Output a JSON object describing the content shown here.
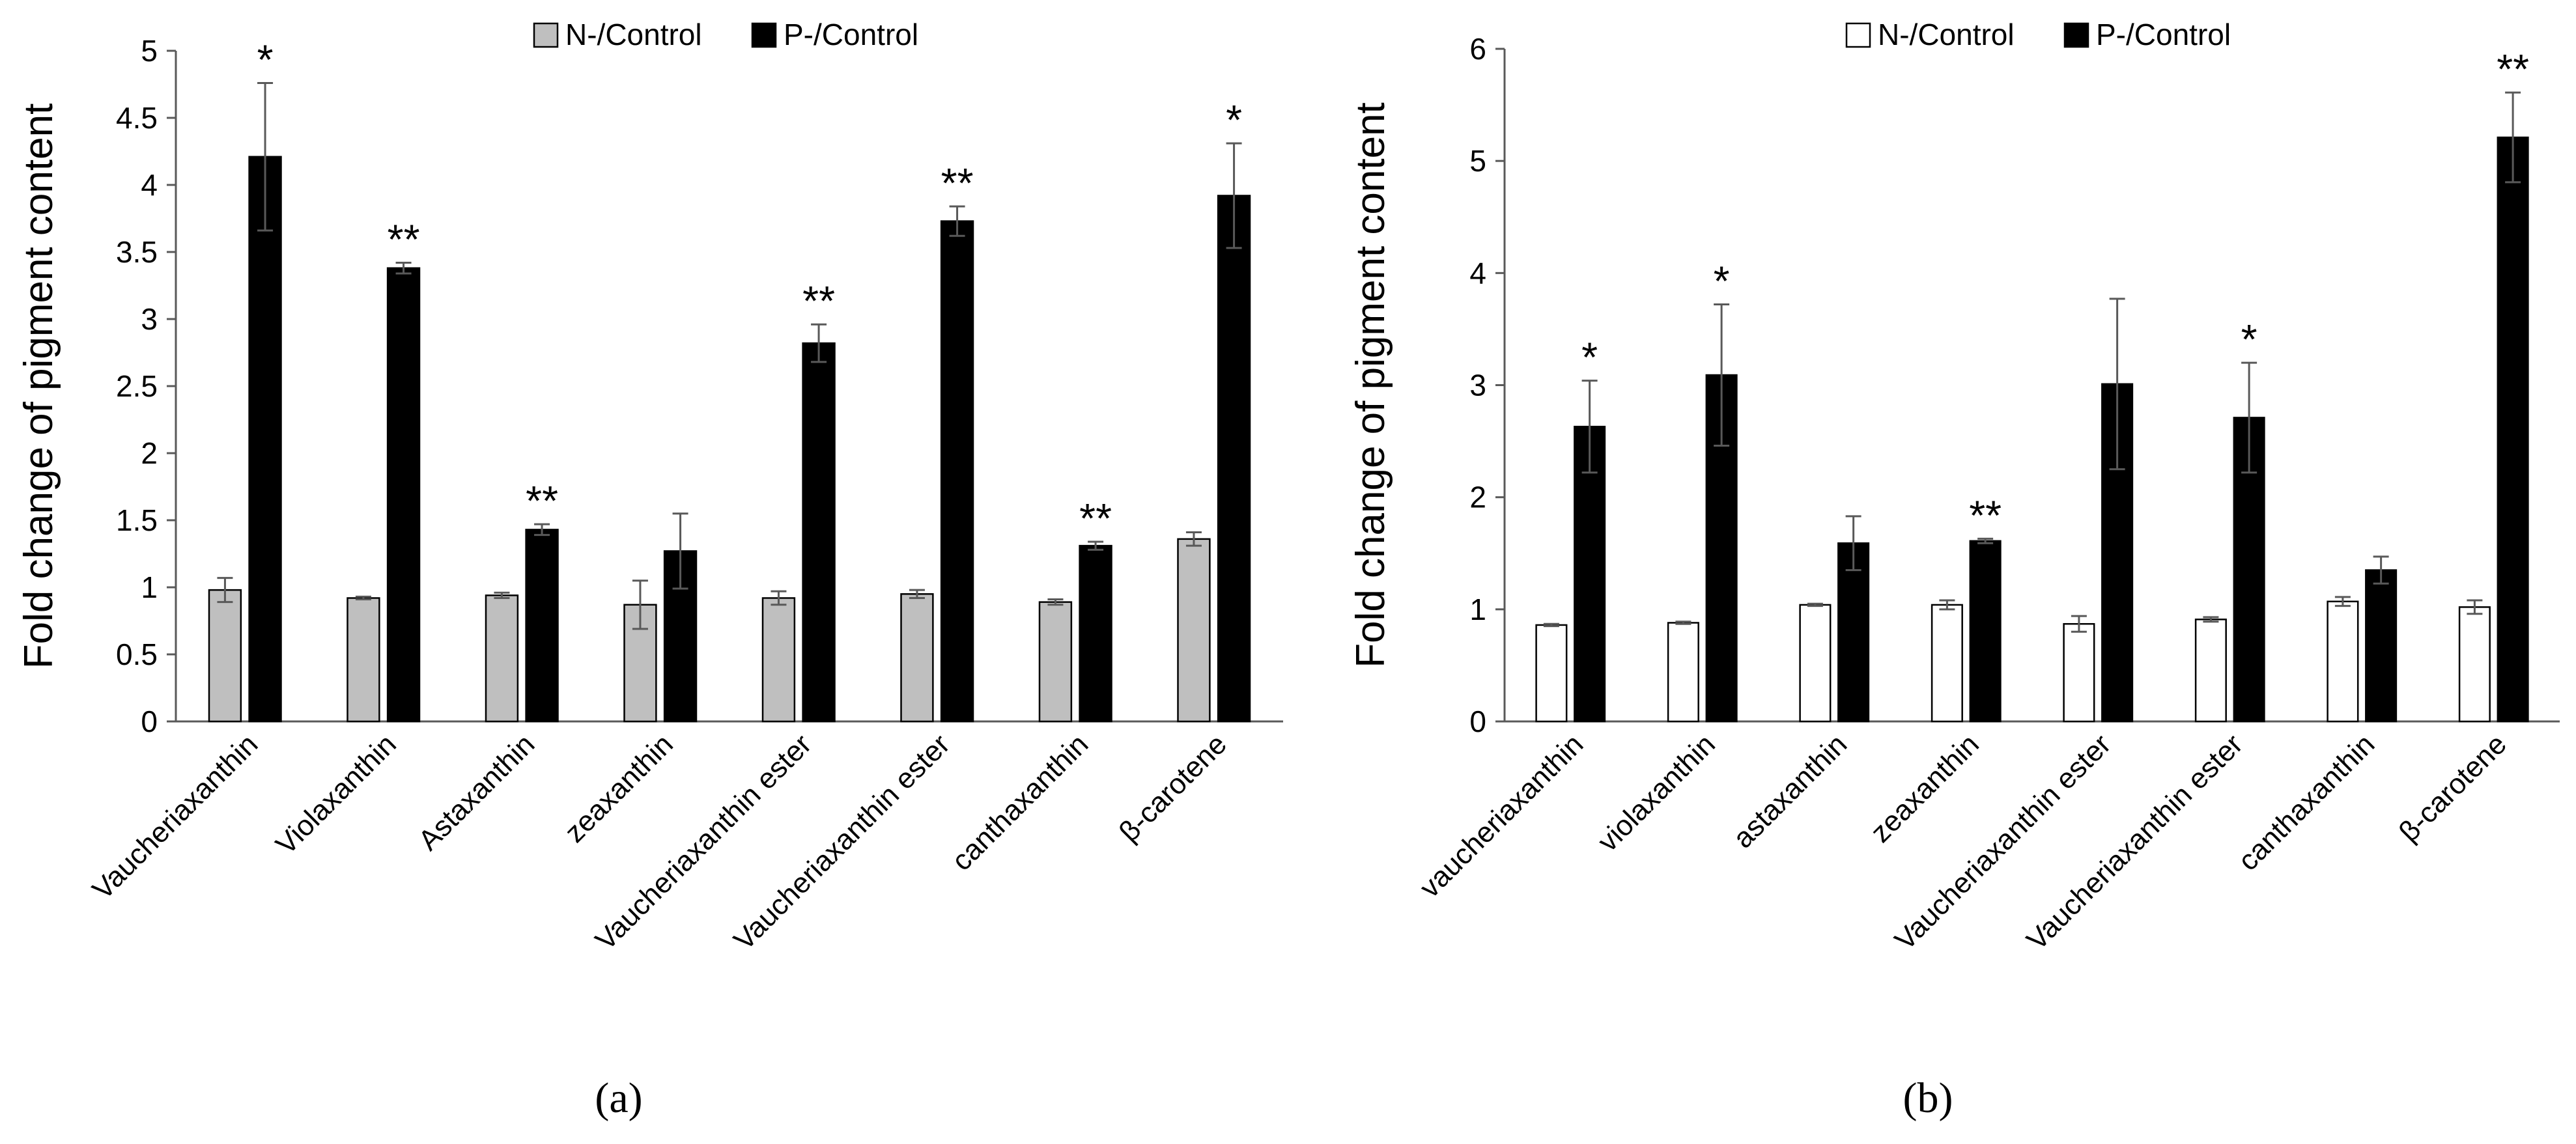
{
  "chart_data": [
    {
      "panel_label": "(a)",
      "type": "bar",
      "ylabel": "Fold change of pigment content",
      "xlabel": "",
      "ylim": [
        0,
        5
      ],
      "yticks": [
        "0",
        "0.5",
        "1",
        "1.5",
        "2",
        "2.5",
        "3",
        "3.5",
        "4",
        "4.5",
        "5"
      ],
      "categories": [
        "Vaucheriaxanthin",
        "Violaxanthin",
        "Astaxanthin",
        "zeaxanthin",
        "Vaucheriaxanthin ester",
        "Vaucheriaxanthin ester",
        "canthaxanthin",
        "β-carotene"
      ],
      "series": [
        {
          "name": "N-/Control",
          "color": "#bfbfbf",
          "values": [
            0.98,
            0.92,
            0.94,
            0.87,
            0.92,
            0.95,
            0.89,
            1.36
          ],
          "errors": [
            0.09,
            0.01,
            0.02,
            0.18,
            0.05,
            0.03,
            0.02,
            0.05
          ]
        },
        {
          "name": "P-/Control",
          "color": "#000000",
          "values": [
            4.21,
            3.38,
            1.43,
            1.27,
            2.82,
            3.73,
            1.31,
            3.92
          ],
          "errors": [
            0.55,
            0.04,
            0.04,
            0.28,
            0.14,
            0.11,
            0.03,
            0.39
          ]
        }
      ],
      "significance": [
        "*",
        "**",
        "**",
        "",
        "**",
        "**",
        "**",
        "*"
      ]
    },
    {
      "panel_label": "(b)",
      "type": "bar",
      "ylabel": "Fold change of pigment content",
      "xlabel": "",
      "ylim": [
        0,
        6
      ],
      "yticks": [
        "0",
        "1",
        "2",
        "3",
        "4",
        "5",
        "6"
      ],
      "categories": [
        "vaucheriaxanthin",
        "violaxanthin",
        "astaxanthin",
        "zeaxanthin",
        "Vaucheriaxanthin ester",
        "Vaucheriaxanthin ester",
        "canthaxanthin",
        "β-carotene"
      ],
      "series": [
        {
          "name": "N-/Control",
          "color": "#ffffff",
          "values": [
            0.86,
            0.88,
            1.04,
            1.04,
            0.87,
            0.91,
            1.07,
            1.02
          ],
          "errors": [
            0.01,
            0.01,
            0.01,
            0.04,
            0.07,
            0.02,
            0.04,
            0.06
          ]
        },
        {
          "name": "P-/Control",
          "color": "#000000",
          "values": [
            2.63,
            3.09,
            1.59,
            1.61,
            3.01,
            2.71,
            1.35,
            5.21
          ],
          "errors": [
            0.41,
            0.63,
            0.24,
            0.02,
            0.76,
            0.49,
            0.12,
            0.4
          ]
        }
      ],
      "significance": [
        "*",
        "*",
        "",
        "**",
        "",
        "*",
        "",
        "**"
      ]
    }
  ]
}
